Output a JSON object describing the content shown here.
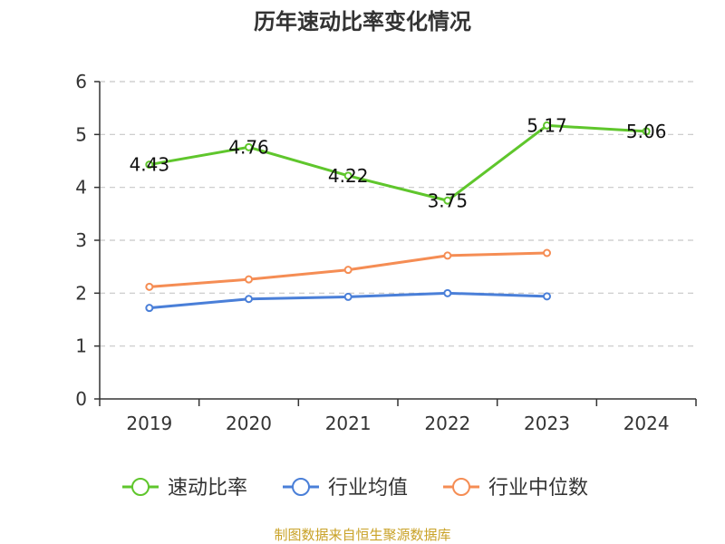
{
  "chart_data": {
    "type": "line",
    "title": "历年速动比率变化情况",
    "categories": [
      "2019",
      "2020",
      "2021",
      "2022",
      "2023",
      "2024"
    ],
    "ylim": [
      0,
      6
    ],
    "yticks": [
      "0",
      "1",
      "2",
      "3",
      "4",
      "5",
      "6"
    ],
    "grid": true,
    "legend_position": "bottom",
    "series": [
      {
        "name": "速动比率",
        "color": "#5fc62c",
        "values": [
          4.43,
          4.76,
          4.22,
          3.75,
          5.17,
          5.06
        ],
        "labels": [
          "4.43",
          "4.76",
          "4.22",
          "3.75",
          "5.17",
          "5.06"
        ]
      },
      {
        "name": "行业均值",
        "color": "#4a7fd8",
        "values": [
          1.72,
          1.89,
          1.93,
          2.0,
          1.94,
          null
        ]
      },
      {
        "name": "行业中位数",
        "color": "#f58d54",
        "values": [
          2.12,
          2.26,
          2.44,
          2.71,
          2.76,
          null
        ]
      }
    ]
  },
  "footer": {
    "source": "制图数据来自恒生聚源数据库"
  }
}
